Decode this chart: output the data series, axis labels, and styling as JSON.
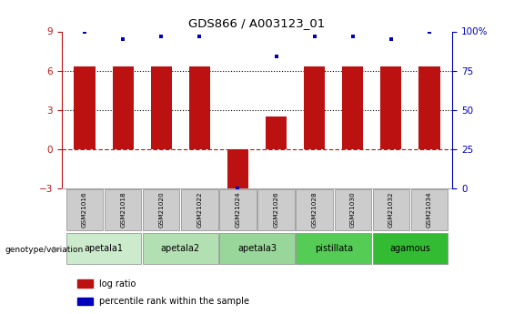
{
  "title": "GDS866 / A003123_01",
  "samples": [
    "GSM21016",
    "GSM21018",
    "GSM21020",
    "GSM21022",
    "GSM21024",
    "GSM21026",
    "GSM21028",
    "GSM21030",
    "GSM21032",
    "GSM21034"
  ],
  "log_ratios": [
    6.3,
    6.3,
    6.3,
    6.3,
    -3.15,
    2.5,
    6.3,
    6.3,
    6.3,
    6.3
  ],
  "pct_actual": [
    100,
    95,
    97,
    97,
    0,
    84,
    97,
    97,
    95,
    100
  ],
  "group_info": [
    {
      "label": "apetala1",
      "c1": 0,
      "c2": 1,
      "color": "#cceacc"
    },
    {
      "label": "apetala2",
      "c1": 2,
      "c2": 3,
      "color": "#b3e0b3"
    },
    {
      "label": "apetala3",
      "c1": 4,
      "c2": 5,
      "color": "#99d699"
    },
    {
      "label": "pistillata",
      "c1": 6,
      "c2": 7,
      "color": "#55cc55"
    },
    {
      "label": "agamous",
      "c1": 8,
      "c2": 9,
      "color": "#33bb33"
    }
  ],
  "ylim_left": [
    -3,
    9
  ],
  "ylim_right": [
    0,
    100
  ],
  "yticks_left": [
    -3,
    0,
    3,
    6,
    9
  ],
  "yticks_right": [
    0,
    25,
    50,
    75,
    100
  ],
  "bar_color": "#bb1111",
  "dot_color": "#0000bb",
  "bg_color": "white",
  "legend_red_label": "log ratio",
  "legend_blue_label": "percentile rank within the sample",
  "genotype_label": "genotype/variation"
}
